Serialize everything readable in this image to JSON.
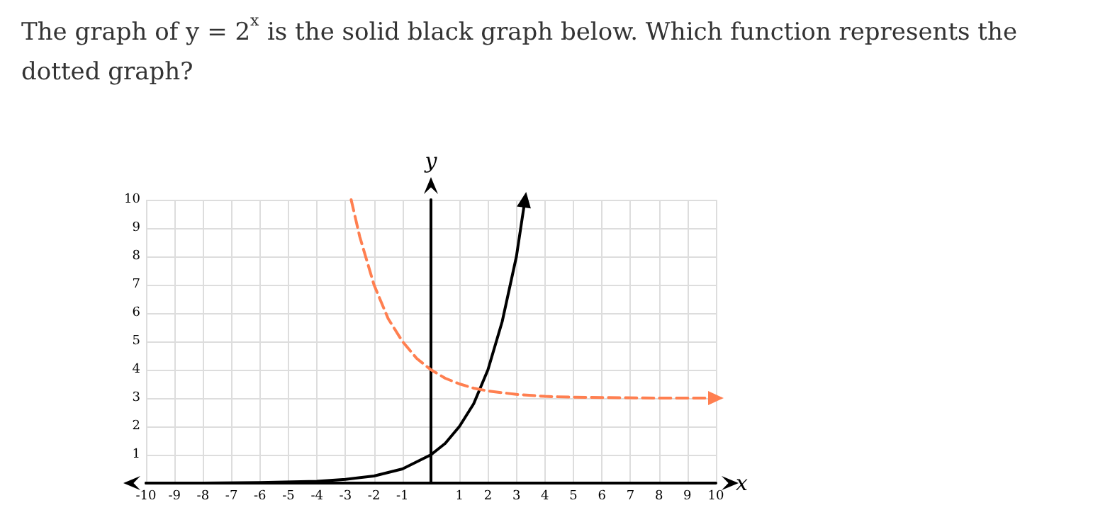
{
  "chart_data": {
    "type": "line",
    "title": "The graph of y = 2$^{x}$ is the solid black graph below. Which function represents the dotted graph?",
    "xlabel": "x",
    "ylabel": "y",
    "xlim": [
      -10,
      10
    ],
    "ylim": [
      0,
      10
    ],
    "xticks": [
      -10,
      -9,
      -8,
      -7,
      -6,
      -5,
      -4,
      -3,
      -2,
      -1,
      {
        "value": 0,
        "label": null
      },
      1,
      2,
      3,
      4,
      5,
      6,
      7,
      8,
      9,
      10
    ],
    "yticks": [
      {
        "value": 0,
        "label": null
      },
      1,
      2,
      3,
      4,
      5,
      6,
      7,
      8,
      9,
      10
    ],
    "grid": true,
    "series": [
      {
        "color": "#000000",
        "line_style": "solid",
        "x": [
          -10,
          -8,
          -6,
          -4,
          -3,
          -2,
          -1,
          0,
          0.5,
          1,
          1.5,
          2,
          2.5,
          3,
          3.3
        ],
        "values": [
          0,
          0,
          0.02,
          0.06,
          0.13,
          0.25,
          0.5,
          1,
          1.4,
          2,
          2.8,
          4,
          5.7,
          8,
          10
        ]
      },
      {
        "color": "#ff7f50",
        "line_style": "dashed",
        "x": [
          -2.8,
          -2.5,
          -2,
          -1.5,
          -1,
          -0.5,
          0,
          0.5,
          1,
          1.5,
          2,
          3,
          4,
          5,
          6,
          8,
          10
        ],
        "values": [
          10,
          8.7,
          7,
          5.8,
          5,
          4.4,
          4,
          3.7,
          3.5,
          3.35,
          3.25,
          3.13,
          3.06,
          3.03,
          3.02,
          3,
          3
        ]
      }
    ]
  }
}
